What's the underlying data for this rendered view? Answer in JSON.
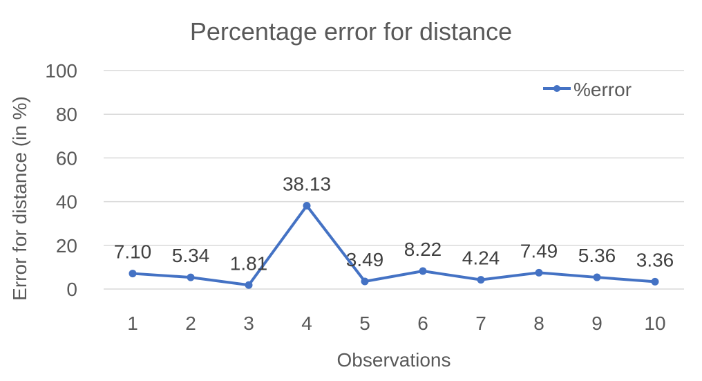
{
  "chart_data": {
    "type": "line",
    "title": "Percentage error for distance",
    "xlabel": "Observations",
    "ylabel": "Error for distance (in %)",
    "categories": [
      "1",
      "2",
      "3",
      "4",
      "5",
      "6",
      "7",
      "8",
      "9",
      "10"
    ],
    "series": [
      {
        "name": "%error",
        "values": [
          7.1,
          5.34,
          1.81,
          38.13,
          3.49,
          8.22,
          4.24,
          7.49,
          5.36,
          3.36
        ],
        "labels": [
          "7.10",
          "5.34",
          "1.81",
          "38.13",
          "3.49",
          "8.22",
          "4.24",
          "7.49",
          "5.36",
          "3.36"
        ],
        "color": "#4472C4"
      }
    ],
    "ylim": [
      0,
      100
    ],
    "yticks": [
      "0",
      "20",
      "40",
      "60",
      "80",
      "100"
    ],
    "grid": true,
    "legend_position": "top-right"
  }
}
